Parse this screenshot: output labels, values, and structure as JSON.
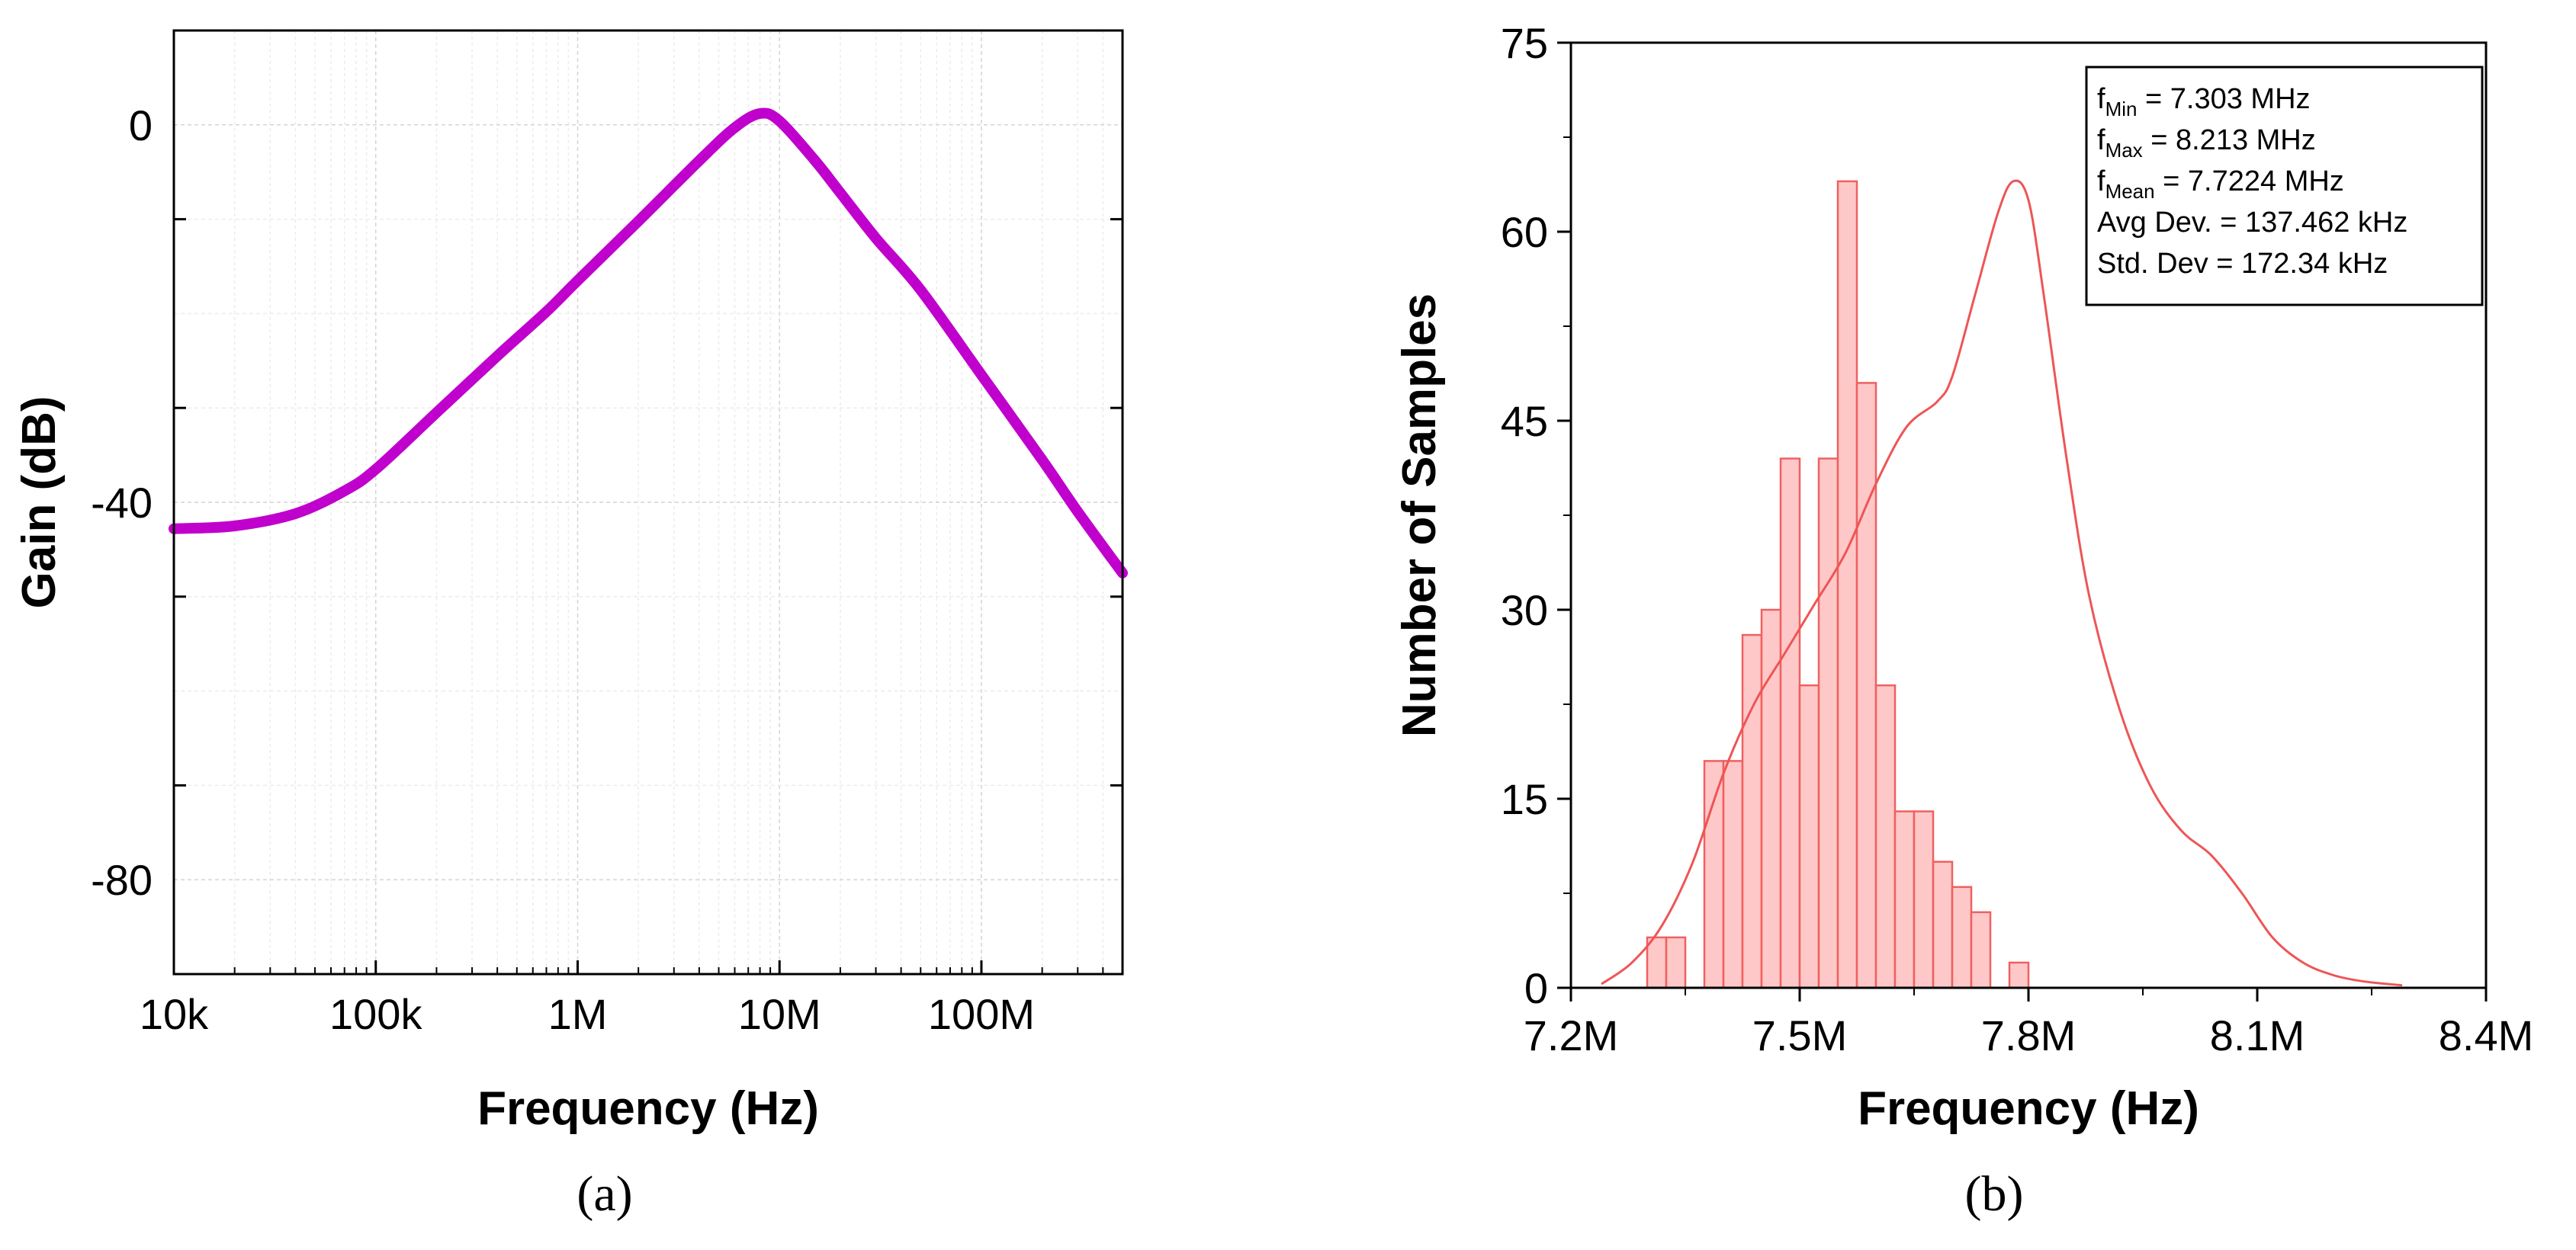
{
  "chart_data": [
    {
      "type": "line",
      "panel_label": "(a)",
      "xlabel": "Frequency (Hz)",
      "ylabel": "Gain (dB)",
      "x_scale": "log",
      "xlim": [
        10000,
        500000000
      ],
      "ylim": [
        -90,
        10
      ],
      "x_ticks": [
        {
          "value": 10000,
          "label": "10k"
        },
        {
          "value": 100000,
          "label": "100k"
        },
        {
          "value": 1000000,
          "label": "1M"
        },
        {
          "value": 10000000,
          "label": "10M"
        },
        {
          "value": 100000000,
          "label": "100M"
        }
      ],
      "y_ticks": [
        {
          "value": 0,
          "label": "0"
        },
        {
          "value": -40,
          "label": "-40"
        },
        {
          "value": -80,
          "label": "-80"
        }
      ],
      "grid": true,
      "series": [
        {
          "name": "Gain",
          "color": "#c000cc",
          "points": [
            [
              10000,
              -42.8
            ],
            [
              20000,
              -42.5
            ],
            [
              40000,
              -41.2
            ],
            [
              70000,
              -38.8
            ],
            [
              100000,
              -36.5
            ],
            [
              200000,
              -30.5
            ],
            [
              400000,
              -24.5
            ],
            [
              700000,
              -19.8
            ],
            [
              1000000,
              -16.5
            ],
            [
              2000000,
              -10.2
            ],
            [
              4000000,
              -3.8
            ],
            [
              6000000,
              -0.3
            ],
            [
              8000000,
              1.2
            ],
            [
              10000000,
              0.4
            ],
            [
              15000000,
              -3.8
            ],
            [
              20000000,
              -7.2
            ],
            [
              30000000,
              -12.0
            ],
            [
              50000000,
              -17.5
            ],
            [
              100000000,
              -26.5
            ],
            [
              200000000,
              -35.5
            ],
            [
              300000000,
              -41.0
            ],
            [
              500000000,
              -47.5
            ]
          ]
        }
      ]
    },
    {
      "type": "bar",
      "subtype": "histogram",
      "panel_label": "(b)",
      "xlabel": "Frequency (Hz)",
      "ylabel": "Number of Samples",
      "xlim": [
        7.2,
        8.4
      ],
      "ylim": [
        0,
        75
      ],
      "x_ticks": [
        {
          "value": 7.2,
          "label": "7.2M"
        },
        {
          "value": 7.5,
          "label": "7.5M"
        },
        {
          "value": 7.8,
          "label": "7.8M"
        },
        {
          "value": 8.1,
          "label": "8.1M"
        },
        {
          "value": 8.4,
          "label": "8.4M"
        }
      ],
      "y_ticks": [
        {
          "value": 0,
          "label": "0"
        },
        {
          "value": 15,
          "label": "15"
        },
        {
          "value": 30,
          "label": "30"
        },
        {
          "value": 45,
          "label": "45"
        },
        {
          "value": 60,
          "label": "60"
        },
        {
          "value": 75,
          "label": "75"
        }
      ],
      "bin_start": 7.3,
      "bin_width": 0.025,
      "values": [
        4,
        4,
        0,
        18,
        18,
        28,
        30,
        42,
        24,
        42,
        64,
        48,
        24,
        14,
        14,
        10,
        8,
        6,
        0,
        2
      ],
      "bar_color": "#ffc8c8",
      "edge_color": "#f06060",
      "curve_color": "#ee5555",
      "density_curve": [
        [
          7.24,
          0.3
        ],
        [
          7.28,
          2.0
        ],
        [
          7.32,
          5.0
        ],
        [
          7.36,
          10.0
        ],
        [
          7.4,
          17.0
        ],
        [
          7.44,
          22.5
        ],
        [
          7.48,
          26.5
        ],
        [
          7.52,
          30.5
        ],
        [
          7.56,
          34.5
        ],
        [
          7.6,
          40.0
        ],
        [
          7.64,
          44.5
        ],
        [
          7.68,
          46.5
        ],
        [
          7.7,
          48.5
        ],
        [
          7.73,
          55.0
        ],
        [
          7.76,
          61.5
        ],
        [
          7.78,
          64.0
        ],
        [
          7.8,
          62.5
        ],
        [
          7.82,
          55.0
        ],
        [
          7.85,
          42.0
        ],
        [
          7.88,
          31.0
        ],
        [
          7.92,
          22.0
        ],
        [
          7.96,
          16.0
        ],
        [
          8.0,
          12.5
        ],
        [
          8.04,
          10.5
        ],
        [
          8.08,
          7.5
        ],
        [
          8.12,
          4.0
        ],
        [
          8.16,
          2.0
        ],
        [
          8.2,
          1.0
        ],
        [
          8.24,
          0.5
        ],
        [
          8.29,
          0.2
        ]
      ],
      "annotation": [
        {
          "sym": "f",
          "sub": "Min",
          "rest": " = 7.303 MHz"
        },
        {
          "sym": "f",
          "sub": "Max",
          "rest": " = 8.213 MHz"
        },
        {
          "sym": "f",
          "sub": "Mean",
          "rest": " = 7.7224 MHz"
        },
        {
          "sym": "",
          "sub": "",
          "rest": "Avg Dev. = 137.462 kHz"
        },
        {
          "sym": "",
          "sub": "",
          "rest": "Std. Dev = 172.34 kHz"
        }
      ]
    }
  ]
}
